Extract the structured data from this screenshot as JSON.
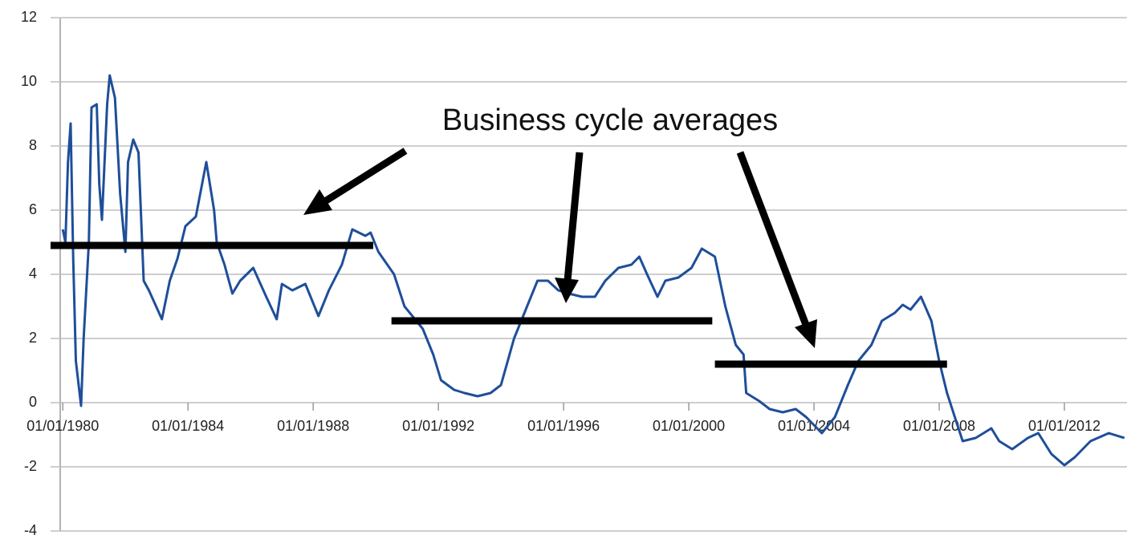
{
  "chart_data": {
    "type": "line",
    "annotation": "Business cycle averages",
    "x": [
      "1980-01",
      "1980-02",
      "1980-03",
      "1980-04",
      "1980-05",
      "1980-06",
      "1980-08",
      "1980-09",
      "1980-11",
      "1980-12",
      "1981-02",
      "1981-03",
      "1981-04",
      "1981-06",
      "1981-07",
      "1981-09",
      "1981-11",
      "1982-01",
      "1982-02",
      "1982-04",
      "1982-06",
      "1982-08",
      "1982-10",
      "1983-03",
      "1983-06",
      "1983-09",
      "1983-12",
      "1984-04",
      "1984-08",
      "1984-11",
      "1984-12",
      "1985-03",
      "1985-06",
      "1985-09",
      "1986-02",
      "1986-07",
      "1986-11",
      "1987-01",
      "1987-05",
      "1987-10",
      "1988-03",
      "1988-07",
      "1988-12",
      "1989-04",
      "1989-09",
      "1989-11",
      "1990-02",
      "1990-08",
      "1990-12",
      "1991-03",
      "1991-07",
      "1991-11",
      "1992-02",
      "1992-07",
      "1992-11",
      "1993-04",
      "1993-09",
      "1994-01",
      "1994-06",
      "1994-11",
      "1995-03",
      "1995-07",
      "1995-11",
      "1996-03",
      "1996-08",
      "1997-01",
      "1997-05",
      "1997-10",
      "1998-03",
      "1998-06",
      "1998-09",
      "1999-01",
      "1999-04",
      "1999-09",
      "2000-02",
      "2000-06",
      "2000-11",
      "2001-03",
      "2001-07",
      "2001-10",
      "2001-11",
      "2002-04",
      "2002-08",
      "2003-01",
      "2003-06",
      "2003-10",
      "2004-04",
      "2004-09",
      "2005-02",
      "2005-06",
      "2005-11",
      "2006-03",
      "2006-08",
      "2006-11",
      "2007-02",
      "2007-06",
      "2007-10",
      "2008-01",
      "2008-04",
      "2008-07",
      "2008-10",
      "2009-03",
      "2009-06",
      "2009-09",
      "2009-12",
      "2010-05",
      "2010-11",
      "2011-03",
      "2011-08",
      "2012-01",
      "2012-05",
      "2012-11",
      "2013-06",
      "2013-12"
    ],
    "series": [
      {
        "color": "#1f4e9a",
        "values": [
          5.4,
          5.0,
          7.5,
          8.7,
          4.5,
          1.3,
          -0.1,
          2.0,
          5.0,
          9.2,
          9.3,
          6.8,
          5.7,
          9.3,
          10.2,
          9.5,
          6.5,
          4.7,
          7.5,
          8.2,
          7.8,
          3.8,
          3.5,
          2.6,
          3.8,
          4.5,
          5.5,
          5.8,
          7.5,
          6.0,
          5.0,
          4.3,
          3.4,
          3.8,
          4.2,
          3.3,
          2.6,
          3.7,
          3.5,
          3.7,
          2.7,
          3.5,
          4.3,
          5.4,
          5.2,
          5.3,
          4.7,
          4.0,
          3.0,
          2.7,
          2.3,
          1.5,
          0.7,
          0.4,
          0.3,
          0.2,
          0.3,
          0.55,
          2.0,
          3.0,
          3.8,
          3.8,
          3.5,
          3.4,
          3.3,
          3.3,
          3.8,
          4.2,
          4.3,
          4.55,
          4.0,
          3.3,
          3.8,
          3.9,
          4.2,
          4.8,
          4.55,
          3.0,
          1.8,
          1.5,
          0.3,
          0.05,
          -0.2,
          -0.3,
          -0.2,
          -0.45,
          -0.95,
          -0.45,
          0.55,
          1.3,
          1.8,
          2.55,
          2.8,
          3.05,
          2.9,
          3.3,
          2.55,
          1.3,
          0.3,
          -0.45,
          -1.2,
          -1.1,
          -0.95,
          -0.8,
          -1.2,
          -1.45,
          -1.1,
          -0.95,
          -1.6,
          -1.95,
          -1.7,
          -1.2,
          -0.95,
          -1.1
        ]
      }
    ],
    "averages": [
      {
        "start": "1979-08",
        "end": "1989-12",
        "value": 4.9
      },
      {
        "start": "1990-07",
        "end": "2000-10",
        "value": 2.55
      },
      {
        "start": "2000-11",
        "end": "2008-04",
        "value": 1.2
      }
    ],
    "averages_color": "#000000",
    "xlim": [
      "1979-12",
      "2014-01"
    ],
    "xticks": [
      {
        "value": "1980-01",
        "label": "01/01/1980"
      },
      {
        "value": "1984-01",
        "label": "01/01/1984"
      },
      {
        "value": "1988-01",
        "label": "01/01/1988"
      },
      {
        "value": "1992-01",
        "label": "01/01/1992"
      },
      {
        "value": "1996-01",
        "label": "01/01/1996"
      },
      {
        "value": "2000-01",
        "label": "01/01/2000"
      },
      {
        "value": "2004-01",
        "label": "01/01/2004"
      },
      {
        "value": "2008-01",
        "label": "01/01/2008"
      },
      {
        "value": "2012-01",
        "label": "01/01/2012"
      }
    ],
    "ylim": [
      -4,
      12
    ],
    "yticks": [
      -4,
      -2,
      0,
      2,
      4,
      6,
      8,
      10,
      12
    ],
    "grid": true
  }
}
